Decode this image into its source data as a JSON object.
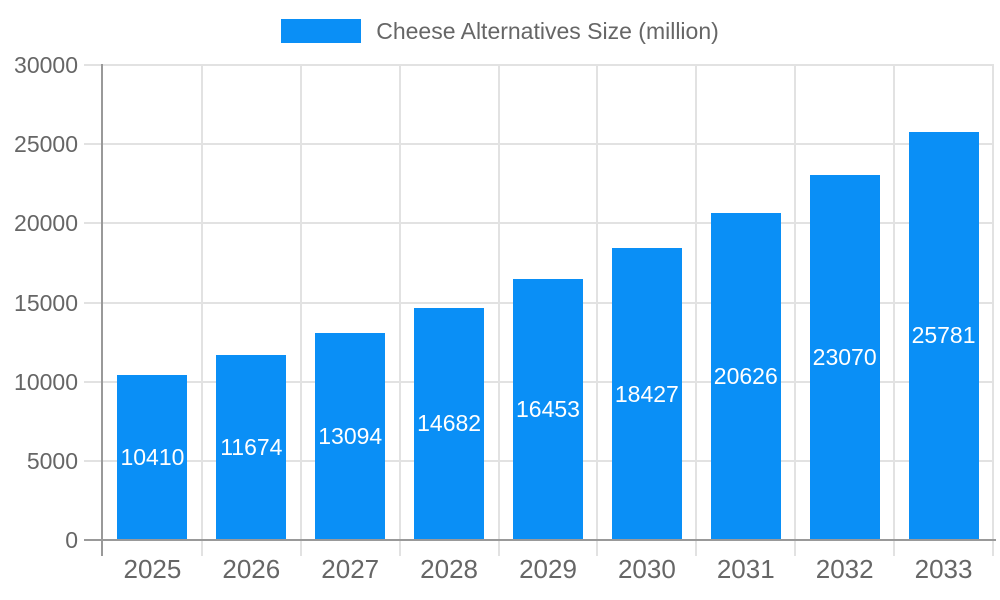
{
  "legend": {
    "label": "Cheese Alternatives Size (million)",
    "position": "top"
  },
  "colors": {
    "bar": "#0a8ff6",
    "grid_line": "#e2e2e2",
    "axis_line": "#999999",
    "axis_text": "#666666",
    "bar_value_label": "#ffffff",
    "background": "#ffffff"
  },
  "chart_data": {
    "type": "bar",
    "title": "Cheese Alternatives Size (million)",
    "categories": [
      "2025",
      "2026",
      "2027",
      "2028",
      "2029",
      "2030",
      "2031",
      "2032",
      "2033"
    ],
    "values": [
      10410,
      11674,
      13094,
      14682,
      16453,
      18427,
      20626,
      23070,
      25781
    ],
    "series": [
      {
        "name": "Cheese Alternatives Size (million)",
        "values": [
          10410,
          11674,
          13094,
          14682,
          16453,
          18427,
          20626,
          23070,
          25781
        ]
      }
    ],
    "xlabel": "",
    "ylabel": "",
    "ylim": [
      0,
      30000
    ],
    "yticks": [
      0,
      5000,
      10000,
      15000,
      20000,
      25000,
      30000
    ],
    "grid": true,
    "legend_position": "top",
    "value_labels": "inside-center-white"
  }
}
